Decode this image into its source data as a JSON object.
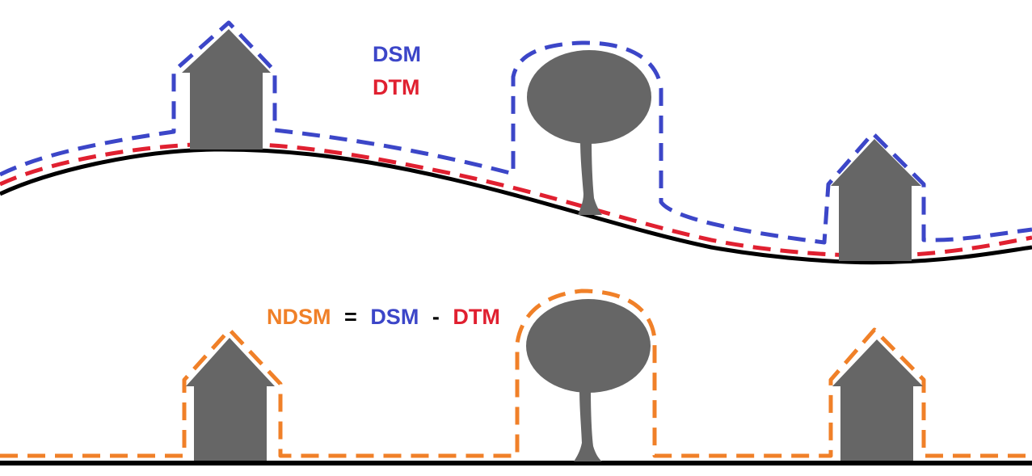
{
  "legend": {
    "dsm": "DSM",
    "dtm": "DTM"
  },
  "formula": {
    "ndsm": "NDSM",
    "equals": "=",
    "dsm": "DSM",
    "minus": "-",
    "dtm": "DTM"
  },
  "colors": {
    "dsm": "#3c46c8",
    "dtm": "#e02030",
    "ndsm": "#f08028",
    "object": "#666666",
    "ground": "#000000"
  },
  "icons": [
    "house-icon",
    "tree-icon"
  ]
}
